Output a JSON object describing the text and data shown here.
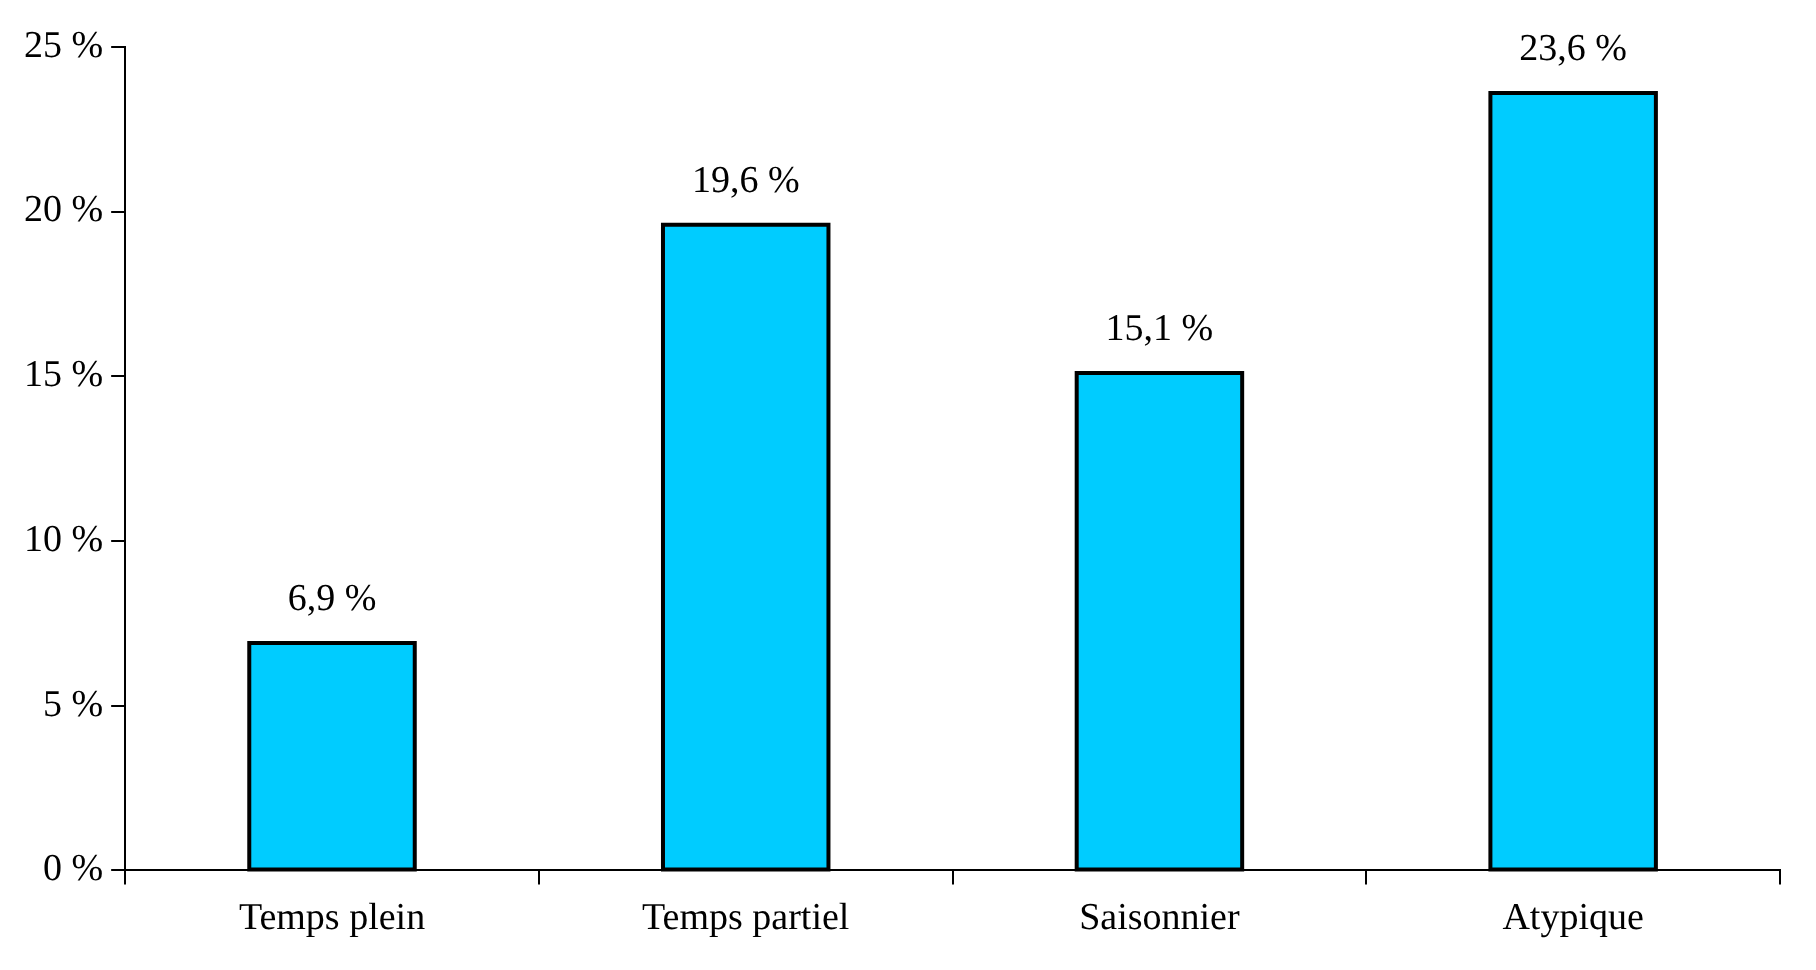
{
  "chart_data": {
    "type": "bar",
    "categories": [
      "Temps plein",
      "Temps partiel",
      "Saisonnier",
      "Atypique"
    ],
    "values": [
      6.9,
      19.6,
      15.1,
      23.6
    ],
    "value_labels": [
      "6,9 %",
      "19,6 %",
      "15,1 %",
      "23,6 %"
    ],
    "color": "#00ccff",
    "ylim": [
      0,
      25
    ],
    "yticks": [
      {
        "value": 0,
        "label": "0 %"
      },
      {
        "value": 5,
        "label": "5 %"
      },
      {
        "value": 10,
        "label": "10 %"
      },
      {
        "value": 15,
        "label": "15 %"
      },
      {
        "value": 20,
        "label": "20 %"
      },
      {
        "value": 25,
        "label": "25 %"
      }
    ],
    "grid": false,
    "legend": false
  }
}
